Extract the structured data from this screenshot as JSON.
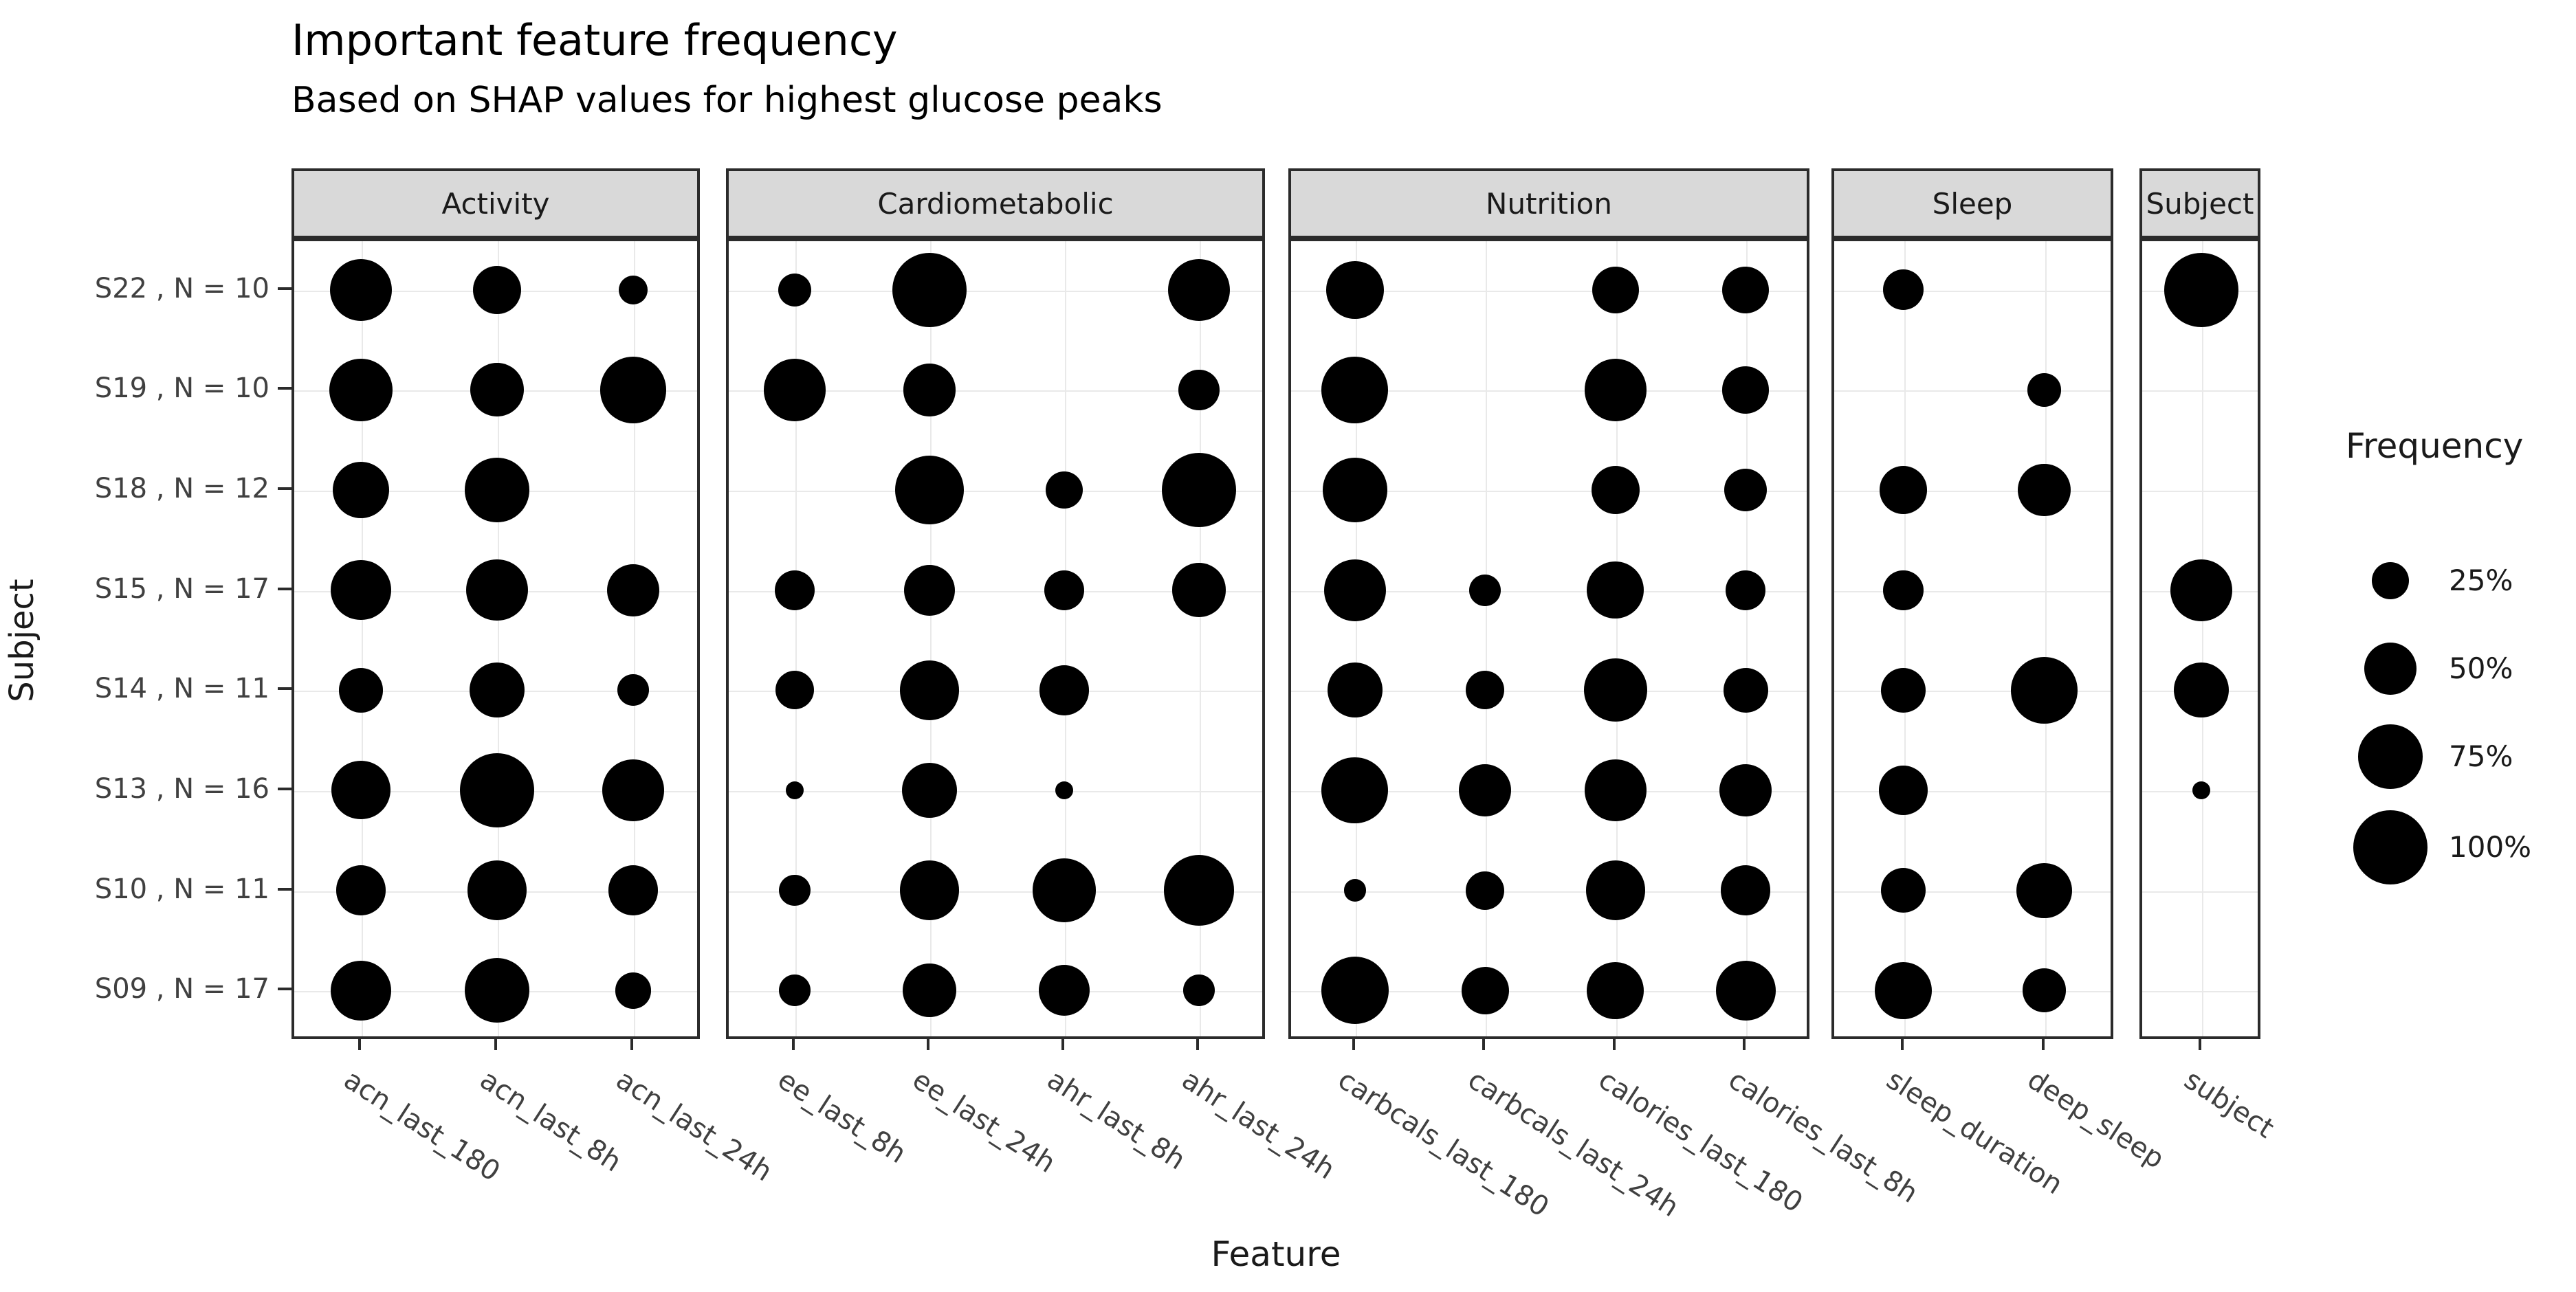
{
  "page": {
    "title": "Important feature frequency"
  },
  "chart_data": {
    "type": "bubble",
    "title": "Important feature frequency",
    "subtitle": "Based on SHAP values for highest glucose peaks",
    "xlabel": "Feature",
    "ylabel": "Subject",
    "grid": true,
    "dot_color": "#000000",
    "strip_fill": "#d9d9d9",
    "size_encoding": "area-proportional-to-frequency",
    "legend": {
      "title": "Frequency",
      "position": "right",
      "labels": [
        "25%",
        "50%",
        "75%",
        "100%"
      ],
      "values": [
        25,
        50,
        75,
        100
      ]
    },
    "facets": [
      {
        "name": "Activity",
        "features": [
          "acn_last_180",
          "acn_last_8h",
          "acn_last_24h"
        ]
      },
      {
        "name": "Cardiometabolic",
        "features": [
          "ee_last_8h",
          "ee_last_24h",
          "ahr_last_8h",
          "ahr_last_24h"
        ]
      },
      {
        "name": "Nutrition",
        "features": [
          "carbcals_last_180",
          "carbcals_last_24h",
          "calories_last_180",
          "calories_last_8h"
        ]
      },
      {
        "name": "Sleep",
        "features": [
          "sleep_duration",
          "deep_sleep"
        ]
      },
      {
        "name": "Subject",
        "features": [
          "subject"
        ]
      }
    ],
    "subjects": [
      {
        "id": "S22",
        "n": 10,
        "label": "S22 , N = 10"
      },
      {
        "id": "S19",
        "n": 10,
        "label": "S19 , N = 10"
      },
      {
        "id": "S18",
        "n": 12,
        "label": "S18 , N = 12"
      },
      {
        "id": "S15",
        "n": 17,
        "label": "S15 , N = 17"
      },
      {
        "id": "S14",
        "n": 11,
        "label": "S14 , N = 11"
      },
      {
        "id": "S13",
        "n": 16,
        "label": "S13 , N = 16"
      },
      {
        "id": "S10",
        "n": 11,
        "label": "S10 , N = 11"
      },
      {
        "id": "S09",
        "n": 17,
        "label": "S09 , N = 17"
      }
    ],
    "frequencies_pct": {
      "S22": {
        "Activity": [
          70,
          42,
          15
        ],
        "Cardiometabolic": [
          20,
          100,
          null,
          70
        ],
        "Nutrition": [
          60,
          null,
          40,
          40
        ],
        "Sleep": [
          30,
          null
        ],
        "Subject": [
          100
        ]
      },
      "S19": {
        "Activity": [
          72,
          52,
          80
        ],
        "Cardiometabolic": [
          70,
          50,
          null,
          30
        ],
        "Nutrition": [
          80,
          null,
          70,
          40
        ],
        "Sleep": [
          null,
          20
        ],
        "Subject": [
          null
        ]
      },
      "S18": {
        "Activity": [
          58,
          75,
          null
        ],
        "Cardiometabolic": [
          null,
          85,
          25,
          100
        ],
        "Nutrition": [
          75,
          null,
          42,
          33
        ],
        "Sleep": [
          42,
          50
        ],
        "Subject": [
          null
        ]
      },
      "S15": {
        "Activity": [
          65,
          68,
          50
        ],
        "Cardiometabolic": [
          29,
          47,
          29,
          53
        ],
        "Nutrition": [
          70,
          18,
          59,
          29
        ],
        "Sleep": [
          29,
          null
        ],
        "Subject": [
          70
        ]
      },
      "S14": {
        "Activity": [
          36,
          55,
          18
        ],
        "Cardiometabolic": [
          27,
          64,
          45,
          null
        ],
        "Nutrition": [
          55,
          27,
          72,
          36
        ],
        "Sleep": [
          36,
          80
        ],
        "Subject": [
          55
        ]
      },
      "S13": {
        "Activity": [
          62,
          100,
          69
        ],
        "Cardiometabolic": [
          6,
          56,
          6,
          null
        ],
        "Nutrition": [
          80,
          50,
          69,
          50
        ],
        "Sleep": [
          44,
          null
        ],
        "Subject": [
          6
        ]
      },
      "S10": {
        "Activity": [
          45,
          64,
          45
        ],
        "Cardiometabolic": [
          18,
          64,
          73,
          90
        ],
        "Nutrition": [
          9,
          27,
          64,
          45
        ],
        "Sleep": [
          36,
          55
        ],
        "Subject": [
          null
        ]
      },
      "S09": {
        "Activity": [
          65,
          76,
          24
        ],
        "Cardiometabolic": [
          18,
          53,
          47,
          18
        ],
        "Nutrition": [
          82,
          41,
          59,
          65
        ],
        "Sleep": [
          59,
          35
        ],
        "Subject": [
          null
        ]
      }
    }
  }
}
